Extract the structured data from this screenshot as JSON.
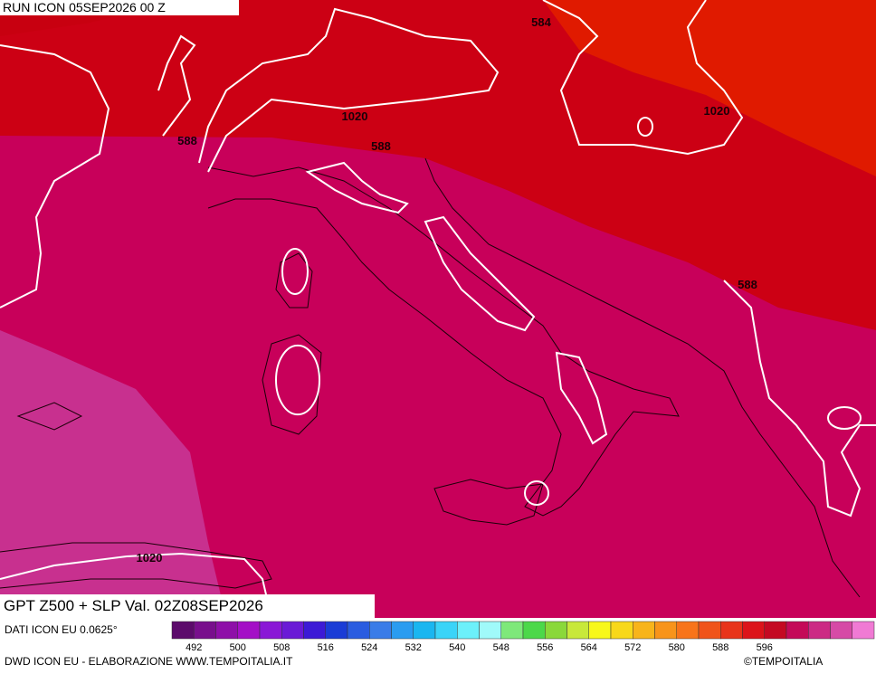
{
  "header": {
    "run": "RUN ICON 05SEP2026 00 Z"
  },
  "title": "GPT Z500 + SLP Val. 02Z08SEP2026",
  "source": "DATI ICON EU 0.0625°",
  "credit": "DWD ICON EU - ELABORAZIONE WWW.TEMPOITALIA.IT",
  "copyright": "©TEMPOITALIA",
  "contour_labels": [
    "584",
    "588",
    "588",
    "588",
    "1020",
    "1020",
    "1020"
  ],
  "colorbar": {
    "colors": [
      "#5c0b6b",
      "#780f8c",
      "#8e0fa8",
      "#a40fc6",
      "#8a18d6",
      "#6a1ad6",
      "#3c1ad6",
      "#1a3cd6",
      "#2a5ce0",
      "#3a7ce8",
      "#2a9cf0",
      "#1ab6f0",
      "#3ad4f8",
      "#6cf0fa",
      "#a0fafa",
      "#7ee87a",
      "#4cd84a",
      "#8ad83a",
      "#c8e83a",
      "#f8f81a",
      "#f8d81a",
      "#f8b41a",
      "#f8941a",
      "#f8741a",
      "#f0541a",
      "#e8341a",
      "#dc141a",
      "#c40a22",
      "#c40a58",
      "#cc2a84",
      "#d64aa6",
      "#f07ad4"
    ],
    "ticks": [
      "492",
      "500",
      "508",
      "516",
      "524",
      "532",
      "540",
      "548",
      "556",
      "564",
      "572",
      "580",
      "588",
      "596"
    ]
  }
}
